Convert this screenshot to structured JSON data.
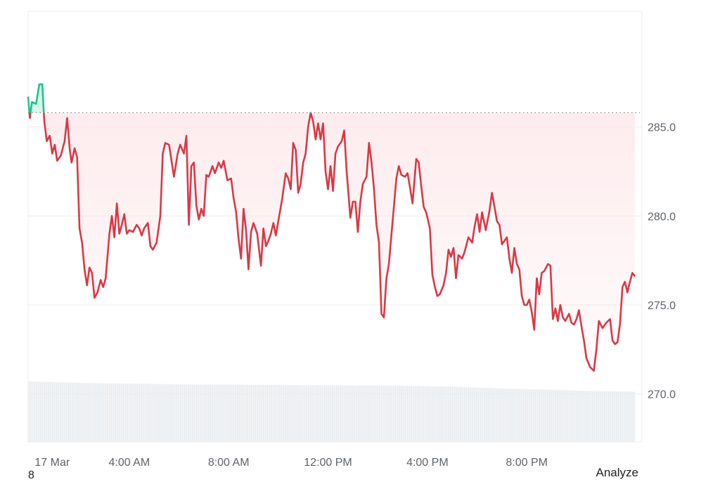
{
  "chart_data": {
    "type": "line",
    "title": "",
    "xlabel": "",
    "ylabel": "",
    "ylim": [
      267.3,
      291.5
    ],
    "yticks": [
      270.0,
      275.0,
      280.0,
      285.0
    ],
    "ytick_labels": [
      "270.0",
      "275.0",
      "280.0",
      "285.0"
    ],
    "xticks": [
      0.9,
      4.0,
      8.0,
      12.0,
      16.0,
      20.0
    ],
    "xtick_labels": [
      "17 Mar",
      "4:00 AM",
      "8:00 AM",
      "12:00 PM",
      "4:00 PM",
      "8:00 PM"
    ],
    "xlim": [
      -0.07,
      24.55
    ],
    "reference_value": 285.8,
    "grid": true,
    "colors": {
      "up": "#1ec48a",
      "down": "#d93846",
      "fill_down": "#fbe3e5",
      "grid": "#ececec",
      "reference": "#888888",
      "volume": "#eceff1"
    },
    "series": [
      {
        "values": [
          [
            -0.07,
            286.7
          ],
          [
            0.0,
            285.5
          ],
          [
            0.08,
            286.4
          ],
          [
            0.25,
            286.3
          ],
          [
            0.38,
            287.4
          ],
          [
            0.5,
            287.4
          ],
          [
            0.58,
            285.3
          ],
          [
            0.68,
            284.2
          ],
          [
            0.8,
            284.5
          ],
          [
            0.9,
            283.5
          ],
          [
            1.0,
            284.0
          ],
          [
            1.1,
            283.1
          ],
          [
            1.25,
            283.4
          ],
          [
            1.4,
            284.2
          ],
          [
            1.5,
            285.5
          ],
          [
            1.6,
            283.8
          ],
          [
            1.68,
            283.0
          ],
          [
            1.8,
            283.8
          ],
          [
            1.9,
            283.3
          ],
          [
            2.0,
            279.3
          ],
          [
            2.1,
            278.5
          ],
          [
            2.2,
            277.0
          ],
          [
            2.3,
            276.1
          ],
          [
            2.4,
            277.1
          ],
          [
            2.5,
            276.8
          ],
          [
            2.6,
            275.4
          ],
          [
            2.72,
            275.7
          ],
          [
            2.85,
            276.4
          ],
          [
            2.95,
            276.0
          ],
          [
            3.05,
            276.5
          ],
          [
            3.2,
            279.0
          ],
          [
            3.3,
            280.0
          ],
          [
            3.4,
            278.8
          ],
          [
            3.5,
            280.7
          ],
          [
            3.6,
            279.0
          ],
          [
            3.7,
            279.5
          ],
          [
            3.8,
            280.1
          ],
          [
            3.9,
            279.0
          ],
          [
            4.0,
            279.2
          ],
          [
            4.15,
            279.1
          ],
          [
            4.3,
            279.5
          ],
          [
            4.4,
            279.3
          ],
          [
            4.5,
            278.9
          ],
          [
            4.6,
            279.3
          ],
          [
            4.75,
            279.6
          ],
          [
            4.85,
            278.3
          ],
          [
            4.95,
            278.1
          ],
          [
            5.1,
            278.5
          ],
          [
            5.25,
            280.0
          ],
          [
            5.35,
            283.5
          ],
          [
            5.45,
            284.1
          ],
          [
            5.6,
            284.0
          ],
          [
            5.8,
            282.2
          ],
          [
            5.95,
            283.5
          ],
          [
            6.05,
            284.0
          ],
          [
            6.2,
            283.5
          ],
          [
            6.3,
            284.5
          ],
          [
            6.4,
            279.5
          ],
          [
            6.5,
            282.8
          ],
          [
            6.6,
            283.0
          ],
          [
            6.7,
            280.6
          ],
          [
            6.8,
            279.8
          ],
          [
            6.9,
            280.4
          ],
          [
            7.0,
            280.0
          ],
          [
            7.1,
            282.3
          ],
          [
            7.2,
            282.2
          ],
          [
            7.35,
            282.8
          ],
          [
            7.45,
            282.4
          ],
          [
            7.6,
            283.0
          ],
          [
            7.7,
            282.7
          ],
          [
            7.8,
            283.1
          ],
          [
            7.95,
            282.0
          ],
          [
            8.1,
            282.1
          ],
          [
            8.2,
            281.0
          ],
          [
            8.3,
            280.2
          ],
          [
            8.4,
            278.7
          ],
          [
            8.5,
            277.6
          ],
          [
            8.6,
            280.4
          ],
          [
            8.7,
            279.2
          ],
          [
            8.8,
            277.0
          ],
          [
            8.9,
            279.1
          ],
          [
            9.0,
            279.6
          ],
          [
            9.15,
            279.0
          ],
          [
            9.3,
            277.2
          ],
          [
            9.4,
            279.3
          ],
          [
            9.5,
            278.3
          ],
          [
            9.6,
            278.6
          ],
          [
            9.7,
            279.0
          ],
          [
            9.8,
            279.6
          ],
          [
            9.9,
            278.9
          ],
          [
            10.0,
            279.7
          ],
          [
            10.15,
            280.9
          ],
          [
            10.3,
            282.4
          ],
          [
            10.4,
            282.1
          ],
          [
            10.5,
            281.5
          ],
          [
            10.6,
            284.1
          ],
          [
            10.7,
            283.7
          ],
          [
            10.8,
            281.3
          ],
          [
            10.9,
            281.8
          ],
          [
            11.0,
            283.0
          ],
          [
            11.1,
            283.5
          ],
          [
            11.2,
            285.0
          ],
          [
            11.3,
            285.8
          ],
          [
            11.4,
            285.3
          ],
          [
            11.5,
            284.3
          ],
          [
            11.6,
            285.2
          ],
          [
            11.7,
            284.3
          ],
          [
            11.8,
            285.2
          ],
          [
            11.9,
            282.5
          ],
          [
            12.0,
            281.5
          ],
          [
            12.1,
            282.8
          ],
          [
            12.2,
            281.4
          ],
          [
            12.3,
            283.5
          ],
          [
            12.4,
            283.9
          ],
          [
            12.55,
            284.2
          ],
          [
            12.65,
            284.8
          ],
          [
            12.75,
            282.5
          ],
          [
            12.9,
            279.9
          ],
          [
            13.0,
            280.8
          ],
          [
            13.1,
            280.8
          ],
          [
            13.2,
            279.1
          ],
          [
            13.3,
            280.8
          ],
          [
            13.4,
            281.8
          ],
          [
            13.55,
            282.2
          ],
          [
            13.65,
            284.1
          ],
          [
            13.75,
            283.0
          ],
          [
            13.85,
            281.5
          ],
          [
            13.95,
            279.5
          ],
          [
            14.05,
            278.5
          ],
          [
            14.15,
            274.5
          ],
          [
            14.25,
            274.3
          ],
          [
            14.35,
            276.5
          ],
          [
            14.45,
            277.3
          ],
          [
            14.55,
            278.9
          ],
          [
            14.65,
            280.5
          ],
          [
            14.75,
            282.1
          ],
          [
            14.85,
            282.8
          ],
          [
            14.95,
            282.3
          ],
          [
            15.1,
            282.2
          ],
          [
            15.2,
            282.4
          ],
          [
            15.3,
            281.6
          ],
          [
            15.4,
            280.7
          ],
          [
            15.55,
            283.2
          ],
          [
            15.65,
            283.0
          ],
          [
            15.75,
            281.7
          ],
          [
            15.85,
            280.5
          ],
          [
            15.95,
            280.2
          ],
          [
            16.1,
            279.3
          ],
          [
            16.2,
            276.7
          ],
          [
            16.3,
            276.0
          ],
          [
            16.4,
            275.5
          ],
          [
            16.5,
            275.6
          ],
          [
            16.65,
            276.1
          ],
          [
            16.75,
            276.8
          ],
          [
            16.85,
            278.1
          ],
          [
            16.95,
            277.7
          ],
          [
            17.05,
            278.2
          ],
          [
            17.15,
            276.5
          ],
          [
            17.25,
            277.8
          ],
          [
            17.4,
            277.6
          ],
          [
            17.5,
            278.0
          ],
          [
            17.65,
            278.8
          ],
          [
            17.8,
            278.5
          ],
          [
            17.9,
            279.4
          ],
          [
            18.0,
            280.1
          ],
          [
            18.1,
            279.1
          ],
          [
            18.2,
            280.2
          ],
          [
            18.35,
            279.2
          ],
          [
            18.5,
            280.3
          ],
          [
            18.6,
            281.3
          ],
          [
            18.7,
            280.5
          ],
          [
            18.8,
            279.7
          ],
          [
            18.9,
            279.5
          ],
          [
            19.0,
            278.4
          ],
          [
            19.1,
            278.6
          ],
          [
            19.2,
            278.8
          ],
          [
            19.3,
            277.6
          ],
          [
            19.4,
            276.8
          ],
          [
            19.5,
            278.2
          ],
          [
            19.6,
            277.3
          ],
          [
            19.7,
            277.0
          ],
          [
            19.8,
            275.5
          ],
          [
            19.9,
            275.0
          ],
          [
            20.0,
            275.0
          ],
          [
            20.1,
            275.3
          ],
          [
            20.2,
            274.6
          ],
          [
            20.3,
            273.6
          ],
          [
            20.4,
            276.5
          ],
          [
            20.5,
            275.6
          ],
          [
            20.6,
            276.8
          ],
          [
            20.7,
            276.9
          ],
          [
            20.85,
            277.3
          ],
          [
            20.95,
            277.2
          ],
          [
            21.05,
            274.2
          ],
          [
            21.15,
            274.8
          ],
          [
            21.25,
            274.1
          ],
          [
            21.35,
            275.0
          ],
          [
            21.45,
            274.3
          ],
          [
            21.55,
            274.1
          ],
          [
            21.7,
            274.5
          ],
          [
            21.8,
            274.0
          ],
          [
            21.9,
            273.9
          ],
          [
            22.0,
            274.2
          ],
          [
            22.1,
            274.7
          ],
          [
            22.2,
            273.8
          ],
          [
            22.3,
            273.0
          ],
          [
            22.4,
            272.0
          ],
          [
            22.55,
            271.5
          ],
          [
            22.7,
            271.3
          ],
          [
            22.8,
            272.5
          ],
          [
            22.9,
            274.1
          ],
          [
            23.05,
            273.7
          ],
          [
            23.2,
            274.0
          ],
          [
            23.35,
            274.2
          ],
          [
            23.45,
            273.0
          ],
          [
            23.55,
            272.8
          ],
          [
            23.65,
            272.9
          ],
          [
            23.75,
            273.9
          ],
          [
            23.85,
            276.0
          ],
          [
            23.95,
            276.3
          ],
          [
            24.05,
            275.7
          ],
          [
            24.15,
            276.3
          ],
          [
            24.25,
            276.8
          ],
          [
            24.35,
            276.6
          ]
        ]
      }
    ],
    "volume": {
      "x": [
        -0.07,
        1.0,
        2.0,
        3.0,
        4.0,
        5.0,
        6.0,
        7.0,
        8.0,
        9.0,
        10.0,
        11.0,
        12.0,
        13.0,
        14.0,
        15.0,
        16.0,
        17.0,
        18.0,
        19.0,
        20.0,
        21.0,
        22.0,
        23.0,
        24.0,
        24.35
      ],
      "values": [
        100,
        99,
        98,
        97,
        96.5,
        96,
        95.5,
        95,
        95,
        94.5,
        94.5,
        94,
        94,
        93.5,
        93.5,
        93,
        92.5,
        91.5,
        90,
        88.5,
        87.5,
        86.5,
        85,
        84,
        83.5,
        83
      ]
    }
  },
  "footer": {
    "analyze_label": "Analyze",
    "corner_fragment": "8"
  }
}
